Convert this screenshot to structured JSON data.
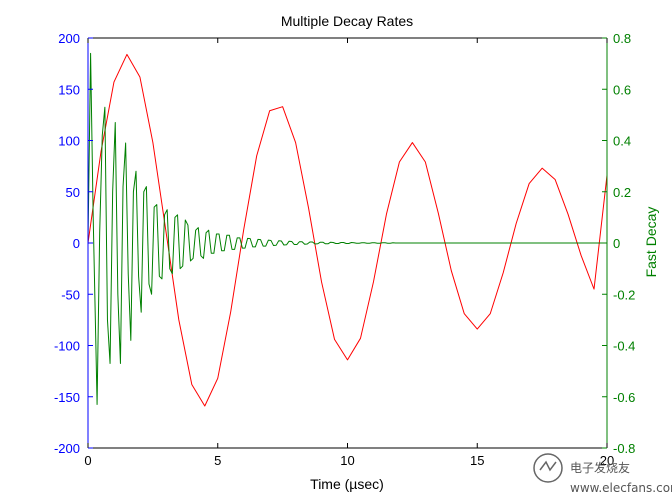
{
  "chart_data": {
    "type": "line",
    "title": "Multiple Decay Rates",
    "xlabel": "Time (µsec)",
    "ylabel_left": "",
    "ylabel_right": "Fast Decay",
    "xlim": [
      0,
      20
    ],
    "ylim_left": [
      -200,
      200
    ],
    "ylim_right": [
      -0.8,
      0.8
    ],
    "x_ticks": [
      "0",
      "5",
      "10",
      "15",
      "20"
    ],
    "y_left_ticks": [
      "200",
      "150",
      "100",
      "50",
      "0",
      "-50",
      "-100",
      "-150",
      "-200"
    ],
    "y_right_ticks": [
      "0.8",
      "0.6",
      "0.4",
      "0.2",
      "0",
      "-0.2",
      "-0.4",
      "-0.6",
      "-0.8"
    ],
    "grid": false,
    "colors": {
      "left_axis": "#0000ff",
      "right_axis": "#008000",
      "slow_series": "#ff0000",
      "fast_series": "#008000"
    },
    "series": [
      {
        "axis": "left",
        "color": "#ff0000",
        "x": [
          0,
          0.5,
          1.0,
          1.5,
          2.0,
          2.5,
          3.0,
          3.5,
          4.0,
          4.5,
          5.0,
          5.5,
          6.0,
          6.5,
          7.0,
          7.5,
          8.0,
          8.5,
          9.0,
          9.5,
          10.0,
          10.5,
          11.0,
          11.5,
          12.0,
          12.5,
          13.0,
          13.5,
          14.0,
          14.5,
          15.0,
          15.5,
          16.0,
          16.5,
          17.0,
          17.5,
          18.0,
          18.5,
          19.0,
          19.5,
          20.0
        ],
        "y": [
          0,
          89,
          157,
          184,
          162,
          98,
          12,
          -75,
          -138,
          -159,
          -132,
          -67,
          13,
          85,
          129,
          133,
          98,
          34,
          -38,
          -94,
          -114,
          -93,
          -38,
          28,
          79,
          98,
          79,
          29,
          -27,
          -69,
          -84,
          -69,
          -29,
          19,
          58,
          73,
          62,
          28,
          -12,
          -45,
          66
        ]
      },
      {
        "axis": "right",
        "color": "#008000",
        "x": [
          0,
          0.1,
          0.2,
          0.3,
          0.35,
          0.45,
          0.55,
          0.65,
          0.75,
          0.85,
          0.95,
          1.05,
          1.15,
          1.25,
          1.35,
          1.45,
          1.55,
          1.65,
          1.75,
          1.85,
          1.95,
          2.05,
          2.15,
          2.25,
          2.35,
          2.45,
          2.55,
          2.65,
          2.75,
          2.85,
          2.95,
          3.05,
          3.15,
          3.25,
          3.35,
          3.45,
          3.55,
          3.65,
          3.75,
          3.85,
          3.95,
          4.05,
          4.15,
          4.25,
          4.35,
          4.45,
          4.55,
          4.65,
          4.75,
          4.85,
          4.95,
          5.05,
          5.15,
          5.25,
          5.35,
          5.45,
          5.55,
          5.65,
          5.75,
          5.85,
          5.95,
          6.05,
          6.15,
          6.25,
          6.35,
          6.45,
          6.55,
          6.65,
          6.75,
          6.85,
          6.95,
          7.05,
          7.15,
          7.25,
          7.35,
          7.45,
          7.55,
          7.65,
          7.75,
          7.85,
          7.95,
          8.05,
          8.15,
          8.25,
          8.35,
          8.45,
          8.55,
          8.65,
          8.75,
          8.85,
          8.95,
          9.05,
          9.15,
          9.25,
          9.35,
          9.45,
          9.55,
          9.65,
          9.75,
          9.85,
          9.95,
          10.05,
          10.15,
          10.25,
          10.35,
          10.45,
          10.55,
          10.65,
          10.75,
          10.85,
          10.95,
          11.05,
          11.15,
          11.25,
          11.35,
          11.45,
          11.55,
          11.65,
          11.75,
          11.85,
          12.0,
          13.0,
          14.0,
          15.0,
          16.0,
          17.0,
          18.0,
          19.0,
          20.0
        ],
        "y": [
          0,
          0.74,
          0.1,
          -0.38,
          -0.63,
          0.04,
          0.42,
          0.53,
          -0.3,
          -0.47,
          0.2,
          0.47,
          -0.2,
          -0.47,
          0.22,
          0.39,
          -0.12,
          -0.38,
          0.2,
          0.28,
          -0.13,
          -0.27,
          0.2,
          0.22,
          -0.16,
          -0.2,
          0.14,
          0.15,
          -0.13,
          -0.14,
          0.11,
          0.13,
          -0.1,
          -0.12,
          0.1,
          0.11,
          -0.1,
          -0.09,
          0.09,
          0.07,
          -0.07,
          -0.06,
          0.05,
          0.06,
          -0.05,
          -0.06,
          0.04,
          0.05,
          -0.04,
          -0.04,
          0.035,
          0.035,
          -0.03,
          -0.03,
          0.03,
          0.03,
          -0.025,
          -0.025,
          0.02,
          0.02,
          -0.02,
          -0.02,
          0.018,
          0.017,
          -0.015,
          -0.015,
          0.014,
          0.013,
          -0.012,
          -0.012,
          0.011,
          0.01,
          -0.01,
          -0.009,
          0.009,
          0.008,
          -0.008,
          -0.007,
          0.007,
          0.006,
          -0.006,
          -0.006,
          0.005,
          0.005,
          -0.005,
          -0.004,
          0.004,
          0.004,
          -0.004,
          -0.003,
          0.003,
          0.003,
          -0.003,
          -0.003,
          0.003,
          0.002,
          -0.002,
          -0.002,
          0.002,
          0.002,
          -0.002,
          -0.002,
          0.002,
          0.001,
          -0.001,
          -0.001,
          0.001,
          0.001,
          -0.001,
          -0.001,
          0.001,
          0.001,
          -0.001,
          -0.001,
          0.001,
          0.001,
          -0.001,
          -0.001,
          0.001,
          0,
          0,
          0,
          0,
          0,
          0,
          0,
          0,
          0,
          0
        ]
      }
    ]
  },
  "watermark": {
    "text": "电子发烧友",
    "url": "www.elecfans.com"
  }
}
